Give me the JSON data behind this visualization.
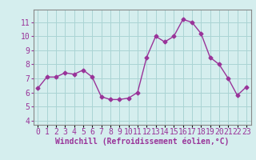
{
  "x": [
    0,
    1,
    2,
    3,
    4,
    5,
    6,
    7,
    8,
    9,
    10,
    11,
    12,
    13,
    14,
    15,
    16,
    17,
    18,
    19,
    20,
    21,
    22,
    23
  ],
  "y": [
    6.3,
    7.1,
    7.1,
    7.4,
    7.3,
    7.6,
    7.1,
    5.7,
    5.5,
    5.5,
    5.6,
    6.0,
    8.5,
    10.0,
    9.6,
    10.0,
    11.2,
    11.0,
    10.2,
    8.5,
    8.0,
    7.0,
    5.8,
    6.4
  ],
  "line_color": "#993399",
  "marker": "D",
  "marker_size": 2.5,
  "bg_color": "#d5eeee",
  "grid_color": "#aad4d4",
  "xlabel": "Windchill (Refroidissement éolien,°C)",
  "xlabel_fontsize": 7,
  "ylabel_ticks": [
    4,
    5,
    6,
    7,
    8,
    9,
    10,
    11
  ],
  "xlim": [
    -0.5,
    23.5
  ],
  "ylim": [
    3.7,
    11.9
  ],
  "tick_fontsize": 7,
  "tick_color": "#993399"
}
